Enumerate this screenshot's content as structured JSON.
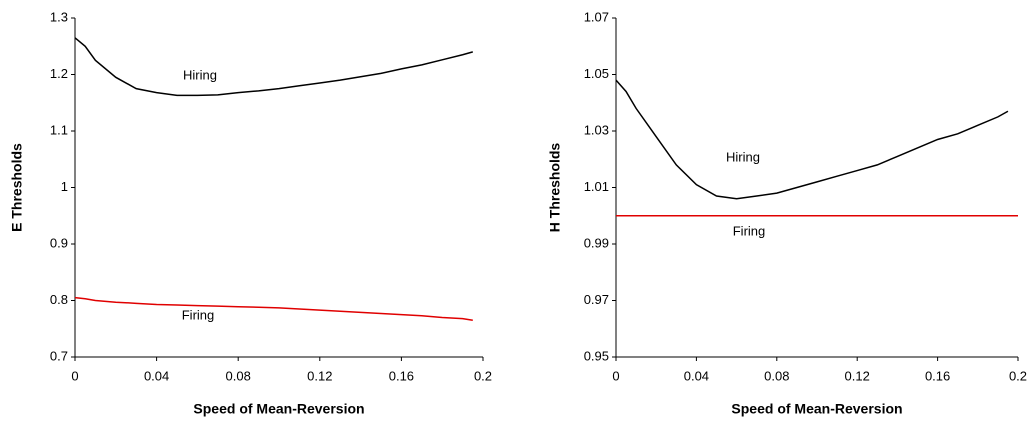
{
  "chart_data": [
    {
      "type": "line",
      "xlabel": "Speed of Mean-Reversion",
      "ylabel": "E Thresholds",
      "xlim": [
        0,
        0.2
      ],
      "xticks": [
        0,
        0.04,
        0.08,
        0.12,
        0.16,
        0.2
      ],
      "ylim": [
        0.7,
        1.3
      ],
      "yticks": [
        0.7,
        0.8,
        0.9,
        1,
        1.1,
        1.2,
        1.3
      ],
      "series": [
        {
          "name": "Hiring",
          "color": "#000000",
          "x": [
            0,
            0.005,
            0.01,
            0.02,
            0.03,
            0.04,
            0.05,
            0.06,
            0.07,
            0.08,
            0.09,
            0.1,
            0.11,
            0.12,
            0.13,
            0.14,
            0.15,
            0.16,
            0.17,
            0.18,
            0.19,
            0.195
          ],
          "values": [
            1.265,
            1.25,
            1.225,
            1.195,
            1.175,
            1.168,
            1.163,
            1.163,
            1.164,
            1.168,
            1.171,
            1.175,
            1.18,
            1.185,
            1.19,
            1.196,
            1.202,
            1.21,
            1.217,
            1.226,
            1.235,
            1.24
          ]
        },
        {
          "name": "Firing",
          "color": "#e00000",
          "x": [
            0,
            0.005,
            0.01,
            0.02,
            0.03,
            0.04,
            0.05,
            0.06,
            0.07,
            0.08,
            0.09,
            0.1,
            0.11,
            0.12,
            0.13,
            0.14,
            0.15,
            0.16,
            0.17,
            0.18,
            0.19,
            0.195
          ],
          "values": [
            0.805,
            0.803,
            0.8,
            0.797,
            0.795,
            0.793,
            0.792,
            0.791,
            0.79,
            0.789,
            0.788,
            0.787,
            0.785,
            0.783,
            0.781,
            0.779,
            0.777,
            0.775,
            0.773,
            0.77,
            0.768,
            0.765
          ]
        }
      ]
    },
    {
      "type": "line",
      "xlabel": "Speed of Mean-Reversion",
      "ylabel": "H Thresholds",
      "xlim": [
        0,
        0.2
      ],
      "xticks": [
        0,
        0.04,
        0.08,
        0.12,
        0.16,
        0.2
      ],
      "ylim": [
        0.95,
        1.07
      ],
      "yticks": [
        0.95,
        0.97,
        0.99,
        1.01,
        1.03,
        1.05,
        1.07
      ],
      "series": [
        {
          "name": "Hiring",
          "color": "#000000",
          "x": [
            0,
            0.005,
            0.01,
            0.02,
            0.03,
            0.04,
            0.05,
            0.06,
            0.07,
            0.08,
            0.09,
            0.1,
            0.11,
            0.12,
            0.13,
            0.14,
            0.15,
            0.16,
            0.17,
            0.18,
            0.19,
            0.195
          ],
          "values": [
            1.048,
            1.044,
            1.038,
            1.028,
            1.018,
            1.011,
            1.007,
            1.006,
            1.007,
            1.008,
            1.01,
            1.012,
            1.014,
            1.016,
            1.018,
            1.021,
            1.024,
            1.027,
            1.029,
            1.032,
            1.035,
            1.037
          ]
        },
        {
          "name": "Firing",
          "color": "#e00000",
          "x": [
            0,
            0.2
          ],
          "values": [
            1,
            1
          ]
        }
      ]
    }
  ]
}
